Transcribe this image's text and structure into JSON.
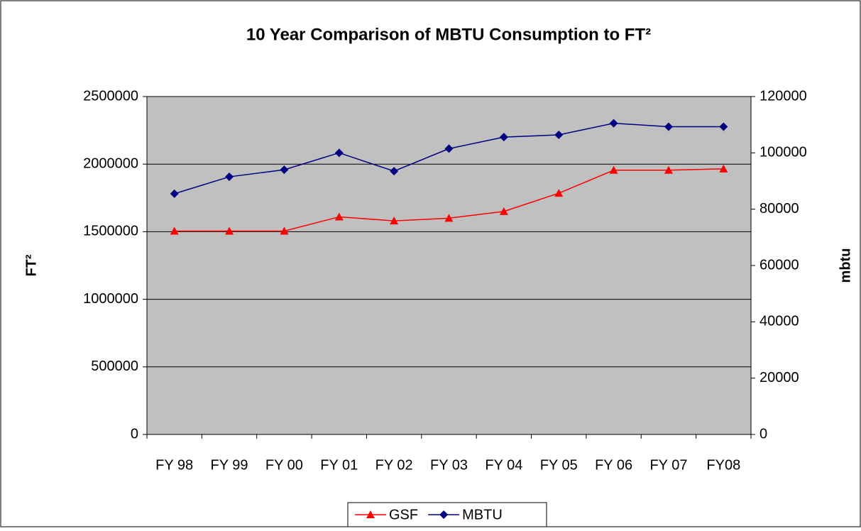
{
  "chart_data": {
    "type": "line",
    "title": "10 Year Comparison of MBTU Consumption to FT²",
    "ylabel": "FT²",
    "y2label": "mbtu",
    "categories": [
      "FY 98",
      "FY 99",
      "FY 00",
      "FY 01",
      "FY 02",
      "FY 03",
      "FY 04",
      "FY 05",
      "FY 06",
      "FY 07",
      "FY08"
    ],
    "series": [
      {
        "name": "GSF",
        "color": "#ff0000",
        "marker": "triangle",
        "values": [
          1505000,
          1505000,
          1505000,
          1610000,
          1580000,
          1600000,
          1650000,
          1785000,
          1955000,
          1955000,
          1965000
        ]
      },
      {
        "name": "MBTU",
        "color": "#000080",
        "marker": "diamond",
        "axis": "y2",
        "values": [
          85500,
          91500,
          94000,
          100000,
          93500,
          101500,
          105600,
          106400,
          110500,
          109300,
          109300
        ]
      }
    ],
    "ylim": [
      0,
      2500000
    ],
    "yticks": [
      0,
      500000,
      1000000,
      1500000,
      2000000,
      2500000
    ],
    "y2lim": [
      0,
      120000
    ],
    "y2ticks": [
      0,
      20000,
      40000,
      60000,
      80000,
      100000,
      120000
    ],
    "grid": true,
    "legend": "bottom",
    "plot_background": "#c0c0c0"
  }
}
